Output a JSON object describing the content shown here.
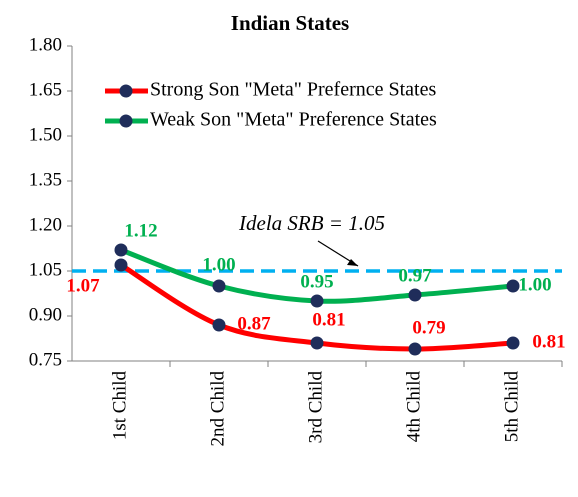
{
  "chart_data": {
    "type": "line",
    "title": "Indian States",
    "categories": [
      "1st Child",
      "2nd Child",
      "3rd Child",
      "4th Child",
      "5th Child"
    ],
    "series": [
      {
        "name": "Strong Son \"Meta\" Prefernce States",
        "color": "#ff0000",
        "values": [
          1.07,
          0.87,
          0.81,
          0.79,
          0.81
        ],
        "value_labels": [
          "1.07",
          "0.87",
          "0.81",
          "0.79",
          "0.81"
        ]
      },
      {
        "name": "Weak Son \"Meta\" Preference States",
        "color": "#00b050",
        "values": [
          1.12,
          1.0,
          0.95,
          0.97,
          1.0
        ],
        "value_labels": [
          "1.12",
          "1.00",
          "0.95",
          "0.97",
          "1.00"
        ]
      }
    ],
    "marker_color": "#1f2d5a",
    "ylim": [
      0.75,
      1.8
    ],
    "yticks": [
      0.75,
      {
        "value": 0.9,
        "label": "0.90"
      },
      1.05,
      {
        "value": 1.2,
        "label": "1.20"
      },
      1.35,
      {
        "value": 1.5,
        "label": "1.50"
      },
      1.65,
      {
        "value": 1.8,
        "label": "1.80"
      }
    ],
    "reference_line": {
      "value": 1.05,
      "color": "#00b0f0",
      "label": "Idela SRB = 1.05"
    }
  }
}
